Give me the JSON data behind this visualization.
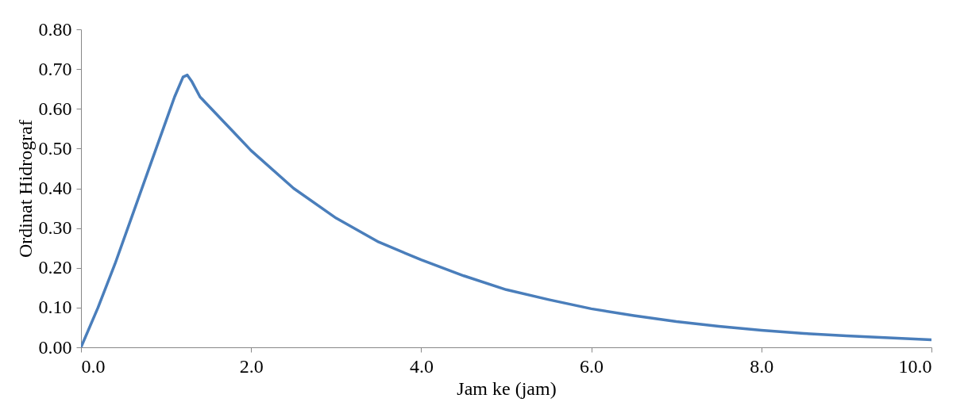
{
  "chart_data": {
    "type": "line",
    "xlabel": "Jam ke (jam)",
    "ylabel": "Ordinat Hidrograf",
    "x": [
      0,
      0.2,
      0.4,
      0.6,
      0.8,
      1.0,
      1.1,
      1.2,
      1.25,
      1.3,
      1.4,
      1.6,
      1.8,
      2.0,
      2.5,
      3.0,
      3.5,
      4.0,
      4.5,
      5.0,
      5.5,
      6.0,
      6.5,
      7.0,
      7.5,
      8.0,
      8.5,
      9.0,
      9.5,
      10.0
    ],
    "series": [
      {
        "color": "#4a7ebb",
        "values": [
          0,
          0.1,
          0.21,
          0.33,
          0.45,
          0.57,
          0.63,
          0.68,
          0.685,
          0.67,
          0.63,
          0.585,
          0.54,
          0.495,
          0.4,
          0.325,
          0.265,
          0.22,
          0.18,
          0.145,
          0.12,
          0.097,
          0.08,
          0.065,
          0.053,
          0.043,
          0.035,
          0.029,
          0.024,
          0.019
        ]
      }
    ],
    "xlim": [
      0,
      10
    ],
    "xticks": [
      {
        "value": 0,
        "label": "0.0"
      },
      {
        "value": 2,
        "label": "2.0"
      },
      {
        "value": 4,
        "label": "4.0"
      },
      {
        "value": 6,
        "label": "6.0"
      },
      {
        "value": 8,
        "label": "8.0"
      },
      {
        "value": 10,
        "label": "10.0"
      }
    ],
    "ylim": [
      0,
      0.8
    ],
    "yticks": [
      {
        "value": 0,
        "label": "0.00"
      },
      {
        "value": 0.1,
        "label": "0.10"
      },
      {
        "value": 0.2,
        "label": "0.20"
      },
      {
        "value": 0.3,
        "label": "0.30"
      },
      {
        "value": 0.4,
        "label": "0.40"
      },
      {
        "value": 0.5,
        "label": "0.50"
      },
      {
        "value": 0.6,
        "label": "0.60"
      },
      {
        "value": 0.7,
        "label": "0.70"
      },
      {
        "value": 0.8,
        "label": "0.80"
      }
    ],
    "grid": false,
    "marker": "none",
    "line_style": "solid"
  }
}
